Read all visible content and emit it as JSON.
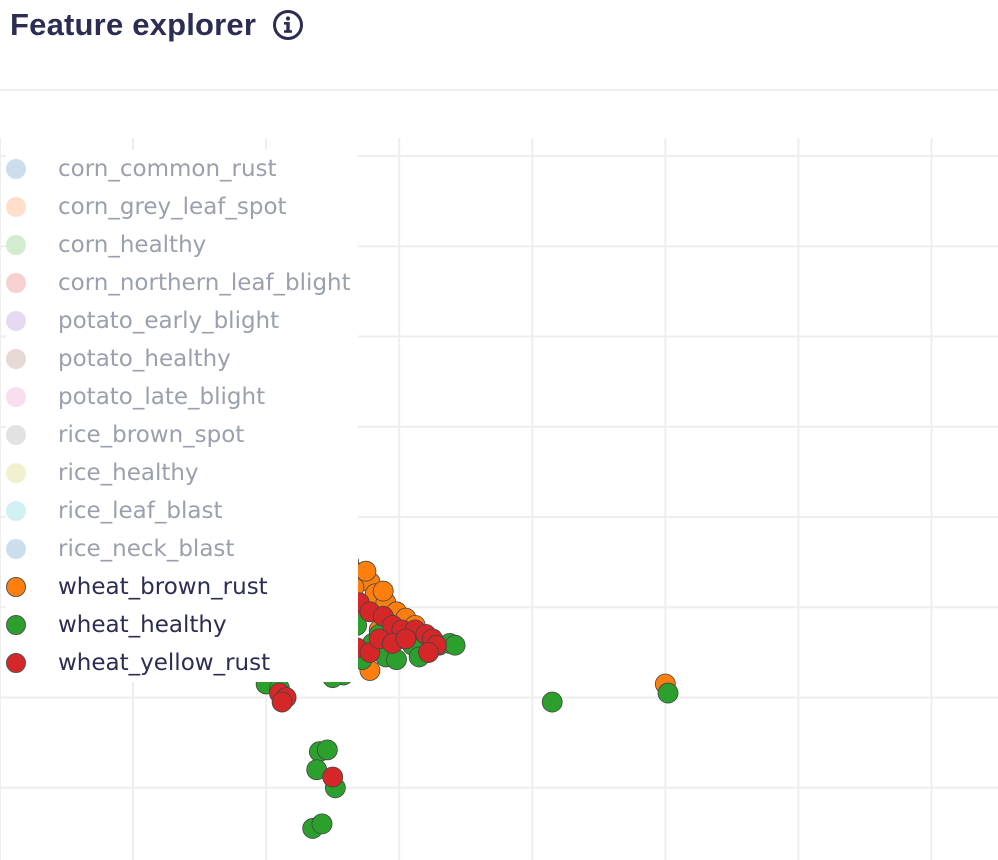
{
  "header": {
    "title": "Feature explorer",
    "info_icon": "info-circle-icon"
  },
  "colors": {
    "title": "#2b2d52",
    "grid": "#eeeeee",
    "legend_active_text": "#2b2d52",
    "legend_inactive_text": "#9aa0ad"
  },
  "chart_data": {
    "type": "scatter",
    "title": "",
    "xlabel": "",
    "ylabel": "",
    "grid": true,
    "axes_visible": false,
    "legend_placement": "left",
    "x_range": [
      -2.0,
      5.5
    ],
    "y_range": [
      -3.8,
      4.2
    ],
    "series": [
      {
        "name": "corn_common_rust",
        "color": "#8fb3d9",
        "visible": false,
        "points": []
      },
      {
        "name": "corn_grey_leaf_spot",
        "color": "#ffb98a",
        "visible": false,
        "points": []
      },
      {
        "name": "corn_healthy",
        "color": "#98d593",
        "visible": false,
        "points": []
      },
      {
        "name": "corn_northern_leaf_blight",
        "color": "#ee9899",
        "visible": false,
        "points": []
      },
      {
        "name": "potato_early_blight",
        "color": "#c6aedc",
        "visible": false,
        "points": []
      },
      {
        "name": "potato_healthy",
        "color": "#c8a9a2",
        "visible": false,
        "points": []
      },
      {
        "name": "potato_late_blight",
        "color": "#f2b6dd",
        "visible": false,
        "points": []
      },
      {
        "name": "rice_brown_spot",
        "color": "#bfbfbf",
        "visible": false,
        "points": []
      },
      {
        "name": "rice_healthy",
        "color": "#e0e095",
        "visible": false,
        "points": []
      },
      {
        "name": "rice_leaf_blast",
        "color": "#99dde6",
        "visible": false,
        "points": []
      },
      {
        "name": "rice_neck_blast",
        "color": "#8fb3d9",
        "visible": false,
        "points": []
      },
      {
        "name": "wheat_brown_rust",
        "color": "#ff7f0e",
        "visible": true,
        "points": [
          [
            0.08,
            0.1
          ],
          [
            0.22,
            0.12
          ],
          [
            0.28,
            0.05
          ],
          [
            0.36,
            0.02
          ],
          [
            0.42,
            -0.05
          ],
          [
            0.5,
            -0.2
          ],
          [
            0.55,
            -0.35
          ],
          [
            0.62,
            -0.5
          ],
          [
            0.7,
            -0.62
          ],
          [
            0.78,
            -0.72
          ],
          [
            0.82,
            -0.85
          ],
          [
            0.9,
            -0.95
          ],
          [
            0.98,
            -1.05
          ],
          [
            1.05,
            -1.12
          ],
          [
            1.12,
            -1.2
          ],
          [
            0.3,
            -0.15
          ],
          [
            0.45,
            -0.3
          ],
          [
            0.6,
            -0.45
          ],
          [
            0.75,
            -0.6
          ],
          [
            0.88,
            -0.82
          ],
          [
            0.1,
            -0.5
          ],
          [
            0.2,
            -0.8
          ],
          [
            0.38,
            -1.0
          ],
          [
            0.55,
            -1.15
          ],
          [
            0.72,
            -1.05
          ],
          [
            -0.05,
            -0.1
          ],
          [
            0.15,
            -0.4
          ],
          [
            0.66,
            -0.78
          ],
          [
            0.92,
            -1.18
          ],
          [
            1.0,
            -1.3
          ],
          [
            0.4,
            -1.55
          ],
          [
            0.52,
            -1.7
          ],
          [
            0.78,
            -1.7
          ],
          [
            0.28,
            -1.3
          ],
          [
            0.15,
            -0.9
          ],
          [
            0.3,
            -0.6
          ],
          [
            0.58,
            -0.88
          ],
          [
            0.85,
            -1.25
          ],
          [
            1.08,
            -1.28
          ],
          [
            0.48,
            -0.12
          ],
          [
            3.0,
            -1.85
          ]
        ]
      },
      {
        "name": "wheat_healthy",
        "color": "#2ca02c",
        "visible": true,
        "points": [
          [
            0.05,
            0.05
          ],
          [
            0.05,
            -0.05
          ],
          [
            0.0,
            -0.2
          ],
          [
            0.02,
            -0.5
          ],
          [
            0.04,
            -0.8
          ],
          [
            0.06,
            -1.05
          ],
          [
            0.1,
            -1.35
          ],
          [
            0.18,
            -1.25
          ],
          [
            0.2,
            -0.9
          ],
          [
            0.25,
            -0.6
          ],
          [
            0.3,
            -0.3
          ],
          [
            0.32,
            -0.95
          ],
          [
            0.4,
            -1.2
          ],
          [
            0.5,
            -1.1
          ],
          [
            0.62,
            -1.4
          ],
          [
            0.55,
            -1.55
          ],
          [
            0.68,
            -1.2
          ],
          [
            0.8,
            -1.4
          ],
          [
            0.9,
            -1.55
          ],
          [
            1.0,
            -1.35
          ],
          [
            1.1,
            -1.42
          ],
          [
            1.22,
            -1.5
          ],
          [
            1.3,
            -1.42
          ],
          [
            1.38,
            -1.4
          ],
          [
            1.42,
            -1.42
          ],
          [
            0.25,
            -1.5
          ],
          [
            0.45,
            -1.6
          ],
          [
            0.58,
            -1.75
          ],
          [
            0.72,
            -1.58
          ],
          [
            0.15,
            -1.7
          ],
          [
            0.05,
            -1.75
          ],
          [
            0.0,
            -1.85
          ],
          [
            0.1,
            -1.9
          ],
          [
            0.35,
            -0.4
          ],
          [
            0.48,
            -0.7
          ],
          [
            0.66,
            -0.98
          ],
          [
            0.5,
            -1.78
          ],
          [
            1.15,
            -1.55
          ],
          [
            0.85,
            -1.3
          ],
          [
            0.98,
            -1.58
          ],
          [
            0.42,
            -0.45
          ],
          [
            0.22,
            -0.2
          ],
          [
            2.15,
            -2.05
          ],
          [
            3.02,
            -1.95
          ],
          [
            0.4,
            -2.6
          ],
          [
            0.46,
            -2.58
          ],
          [
            0.38,
            -2.8
          ],
          [
            0.52,
            -3.0
          ],
          [
            0.35,
            -3.45
          ],
          [
            0.42,
            -3.4
          ]
        ]
      },
      {
        "name": "wheat_yellow_rust",
        "color": "#d62728",
        "visible": true,
        "points": [
          [
            0.05,
            0.0
          ],
          [
            0.15,
            -0.1
          ],
          [
            0.25,
            -0.05
          ],
          [
            0.12,
            -0.2
          ],
          [
            0.22,
            -0.3
          ],
          [
            0.3,
            -0.45
          ],
          [
            0.18,
            -0.5
          ],
          [
            0.08,
            -0.55
          ],
          [
            0.1,
            -0.75
          ],
          [
            0.2,
            -0.85
          ],
          [
            0.32,
            -0.7
          ],
          [
            0.4,
            -0.9
          ],
          [
            0.5,
            -0.85
          ],
          [
            0.6,
            -1.0
          ],
          [
            0.7,
            -0.95
          ],
          [
            0.78,
            -1.05
          ],
          [
            0.88,
            -1.1
          ],
          [
            0.95,
            -1.2
          ],
          [
            1.02,
            -1.25
          ],
          [
            1.12,
            -1.25
          ],
          [
            1.2,
            -1.3
          ],
          [
            1.25,
            -1.35
          ],
          [
            1.28,
            -1.42
          ],
          [
            1.22,
            -1.5
          ],
          [
            0.42,
            -1.1
          ],
          [
            0.52,
            -1.25
          ],
          [
            0.6,
            -1.35
          ],
          [
            0.68,
            -1.45
          ],
          [
            0.78,
            -1.5
          ],
          [
            0.85,
            -1.35
          ],
          [
            0.95,
            -1.4
          ],
          [
            0.38,
            -1.3
          ],
          [
            0.28,
            -1.15
          ],
          [
            0.16,
            -1.0
          ],
          [
            0.3,
            -0.2
          ],
          [
            0.45,
            -0.55
          ],
          [
            0.55,
            -0.65
          ],
          [
            0.36,
            -0.35
          ],
          [
            0.58,
            -1.3
          ],
          [
            1.05,
            -1.35
          ],
          [
            0.1,
            -1.95
          ],
          [
            0.15,
            -2.0
          ],
          [
            0.12,
            -2.05
          ],
          [
            0.5,
            -2.88
          ]
        ]
      }
    ]
  }
}
